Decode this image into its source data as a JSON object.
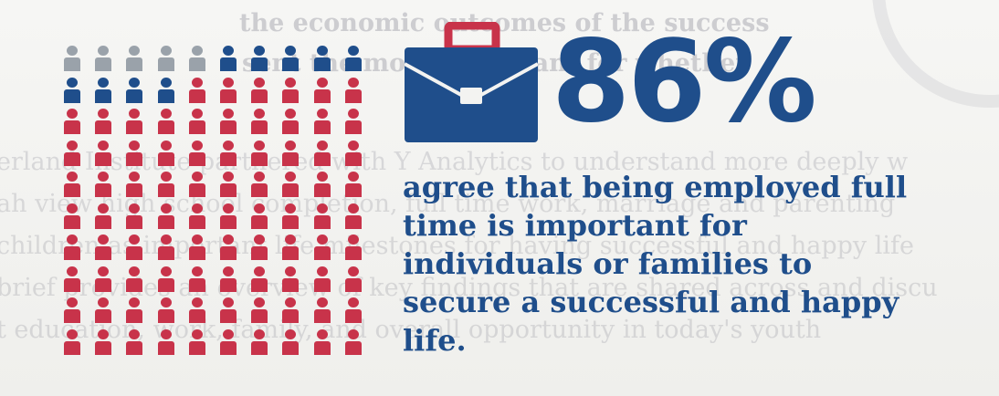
{
  "background_text": {
    "lines": [
      "the economic outcomes of the success",
      "sent the most important for whether",
      "erland Institute partnered with Y Analytics to understand more deeply w",
      "ah view high school completion, full time work, marriage and parenting",
      "children as important life milestones for having successful and happy life",
      "brief provides an overview of key findings that are shared across and discu",
      "t education, work, family, and overall opportunity in today's youth"
    ]
  },
  "stat": {
    "percent": "86%",
    "statement": "agree that being employed full time is important for individuals or families to secure a successful and happy life.",
    "value": 86
  },
  "pictogram": {
    "total": 100,
    "columns": 10,
    "rows": 10,
    "composition": [
      {
        "label": "gray",
        "count": 5,
        "color": "#9aa2aa"
      },
      {
        "label": "blue",
        "count": 9,
        "color": "#1f4e8b"
      },
      {
        "label": "red",
        "count": 86,
        "color": "#c8334a"
      }
    ]
  },
  "colors": {
    "accent_blue": "#1f4e8b",
    "accent_red": "#c8334a",
    "gray": "#9aa2aa"
  },
  "icons": {
    "briefcase": "briefcase-icon",
    "person": "person-icon"
  }
}
